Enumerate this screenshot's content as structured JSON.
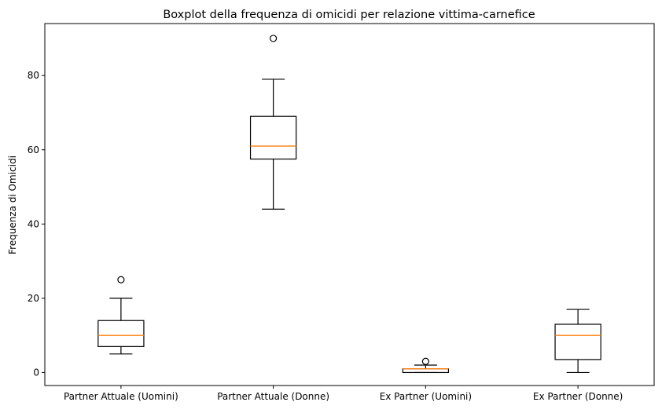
{
  "chart_data": {
    "type": "box",
    "title": "Boxplot della frequenza di omicidi per relazione vittima-carnefice",
    "xlabel": "",
    "ylabel": "Frequenza di Omicidi",
    "ylim": [
      -3.5,
      94
    ],
    "yticks": [
      0,
      20,
      40,
      60,
      80
    ],
    "grid": false,
    "categories": [
      "Partner Attuale (Uomini)",
      "Partner Attuale (Donne)",
      "Ex Partner (Uomini)",
      "Ex Partner (Donne)"
    ],
    "boxes": [
      {
        "whisker_low": 5,
        "q1": 7,
        "median": 10,
        "q3": 14,
        "whisker_high": 20,
        "outliers": [
          25
        ]
      },
      {
        "whisker_low": 44,
        "q1": 57.5,
        "median": 61,
        "q3": 69,
        "whisker_high": 79,
        "outliers": [
          90
        ]
      },
      {
        "whisker_low": 0,
        "q1": 0,
        "median": 1,
        "q3": 1,
        "whisker_high": 2,
        "outliers": [
          3
        ]
      },
      {
        "whisker_low": 0,
        "q1": 3.5,
        "median": 10,
        "q3": 13,
        "whisker_high": 17,
        "outliers": []
      }
    ],
    "colors": {
      "box": "#000000",
      "median": "#ff7f0e",
      "outlier": "#000000"
    }
  }
}
